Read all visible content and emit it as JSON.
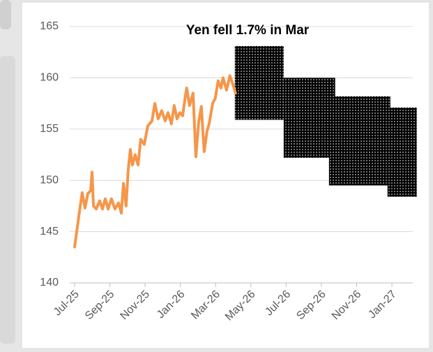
{
  "chart_data": {
    "type": "line",
    "title": "Yen fell 1.7% in Mar",
    "color": "#f5964a",
    "x": [
      0,
      0.12,
      0.24,
      0.43,
      0.59,
      0.75,
      0.91,
      0.99,
      1.07,
      1.23,
      1.42,
      1.58,
      1.74,
      1.9,
      2.09,
      2.29,
      2.49,
      2.65,
      2.77,
      2.92,
      3.04,
      3.16,
      3.28,
      3.44,
      3.6,
      3.75,
      3.95,
      4.15,
      4.39,
      4.55,
      4.74,
      4.94,
      5.14,
      5.3,
      5.49,
      5.65,
      5.81,
      5.97,
      6.13,
      6.28,
      6.36,
      6.52,
      6.72,
      6.88,
      7.04,
      7.19,
      7.35,
      7.51,
      7.63,
      7.83,
      7.98,
      8.14,
      8.3,
      8.42,
      8.62,
      8.81,
      9.01,
      9.13
    ],
    "values": [
      143.5,
      145,
      146.5,
      148.8,
      147.3,
      148.7,
      149,
      150.8,
      147.5,
      147.2,
      148,
      147.2,
      148.2,
      147.2,
      148.2,
      147.2,
      147.8,
      146.8,
      149.7,
      147.5,
      151,
      153,
      151.5,
      152.5,
      151.5,
      154,
      153.5,
      155.3,
      155.8,
      157.5,
      156,
      156.8,
      155.8,
      156.6,
      155.5,
      157.3,
      156,
      156.6,
      156.3,
      158.2,
      159,
      157.3,
      158.5,
      152.3,
      155.7,
      157.2,
      152.8,
      154.8,
      155.5,
      157.5,
      158,
      159.7,
      159,
      160,
      158.8,
      160.2,
      159.2,
      158.5
    ],
    "bands": {
      "color": "#ffc000",
      "x_start": [
        9.09,
        11.86,
        14.43,
        17.75
      ],
      "x_end": [
        11.86,
        14.78,
        17.91,
        19.41
      ],
      "low": [
        155.9,
        152.2,
        149.5,
        148.4
      ],
      "high": [
        163.1,
        160,
        158.2,
        157.1
      ]
    },
    "xlim": [
      0,
      19.5
    ],
    "xticks": [
      {
        "value": 0,
        "label": "Jul-25"
      },
      {
        "value": 2,
        "label": "Sep-25"
      },
      {
        "value": 4,
        "label": "Nov-25"
      },
      {
        "value": 6,
        "label": "Jan-26"
      },
      {
        "value": 8,
        "label": "Mar-26"
      },
      {
        "value": 10,
        "label": "May-26"
      },
      {
        "value": 12,
        "label": "Jul-26"
      },
      {
        "value": 14,
        "label": "Sep-26"
      },
      {
        "value": 16,
        "label": "Nov-26"
      },
      {
        "value": 18,
        "label": "Jan-27"
      }
    ],
    "ylim": [
      140,
      165
    ],
    "yticks": [
      140,
      145,
      150,
      155,
      160,
      165
    ],
    "grid": true
  }
}
